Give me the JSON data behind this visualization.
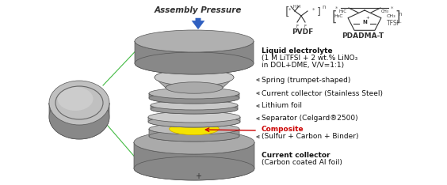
{
  "background_color": "#ffffff",
  "assembly_pressure_text": "Assembly Pressure",
  "minus_label": "-",
  "plus_label": "+",
  "pvdf_label": "PVDF",
  "pdadma_label": "PDADMA-T",
  "tfsi_label": "TFSI⁻",
  "layer_text_annotations": [
    "Liquid electrolyte\n(1 M LiTFSI + 2 wt.% LiNO₃\nin DOL+DME, V/V=1:1)",
    "Spring (trumpet-shaped)",
    "Current collector (Stainless Steel)",
    "Lithium foil",
    "Separator (Celgard®2500)",
    "Composite\n(Sulfur + Carbon + Binder)",
    "Current collector\n(Carbon coated Al foil)"
  ]
}
